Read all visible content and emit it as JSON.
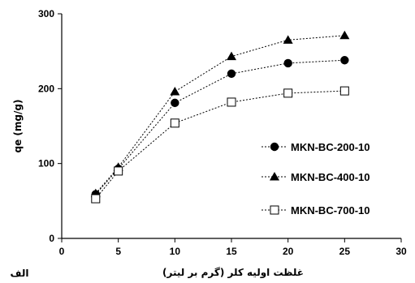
{
  "chart_data": {
    "type": "line",
    "xlabel": "غلظت اولیه کلر (گرم بر لیتر)",
    "ylabel": "qe (mg/g)",
    "panel_label": "الف",
    "xlim": [
      0,
      30
    ],
    "ylim": [
      0,
      300
    ],
    "xticks": [
      0,
      5,
      10,
      15,
      20,
      25,
      30
    ],
    "yticks": [
      0,
      100,
      200,
      300
    ],
    "grid": false,
    "legend_position": "right",
    "x": [
      3,
      5,
      10,
      15,
      20,
      25
    ],
    "series": [
      {
        "name": "MKN-BC-200-10",
        "marker": "circle-filled",
        "color": "#000000",
        "values": [
          59,
          93,
          181,
          220,
          234,
          238
        ]
      },
      {
        "name": "MKN-BC-400-10",
        "marker": "triangle-filled",
        "color": "#000000",
        "values": [
          60,
          95,
          196,
          243,
          265,
          271
        ]
      },
      {
        "name": "MKN-BC-700-10",
        "marker": "square-open",
        "color": "#000000",
        "values": [
          53,
          90,
          154,
          182,
          194,
          197
        ]
      }
    ]
  }
}
